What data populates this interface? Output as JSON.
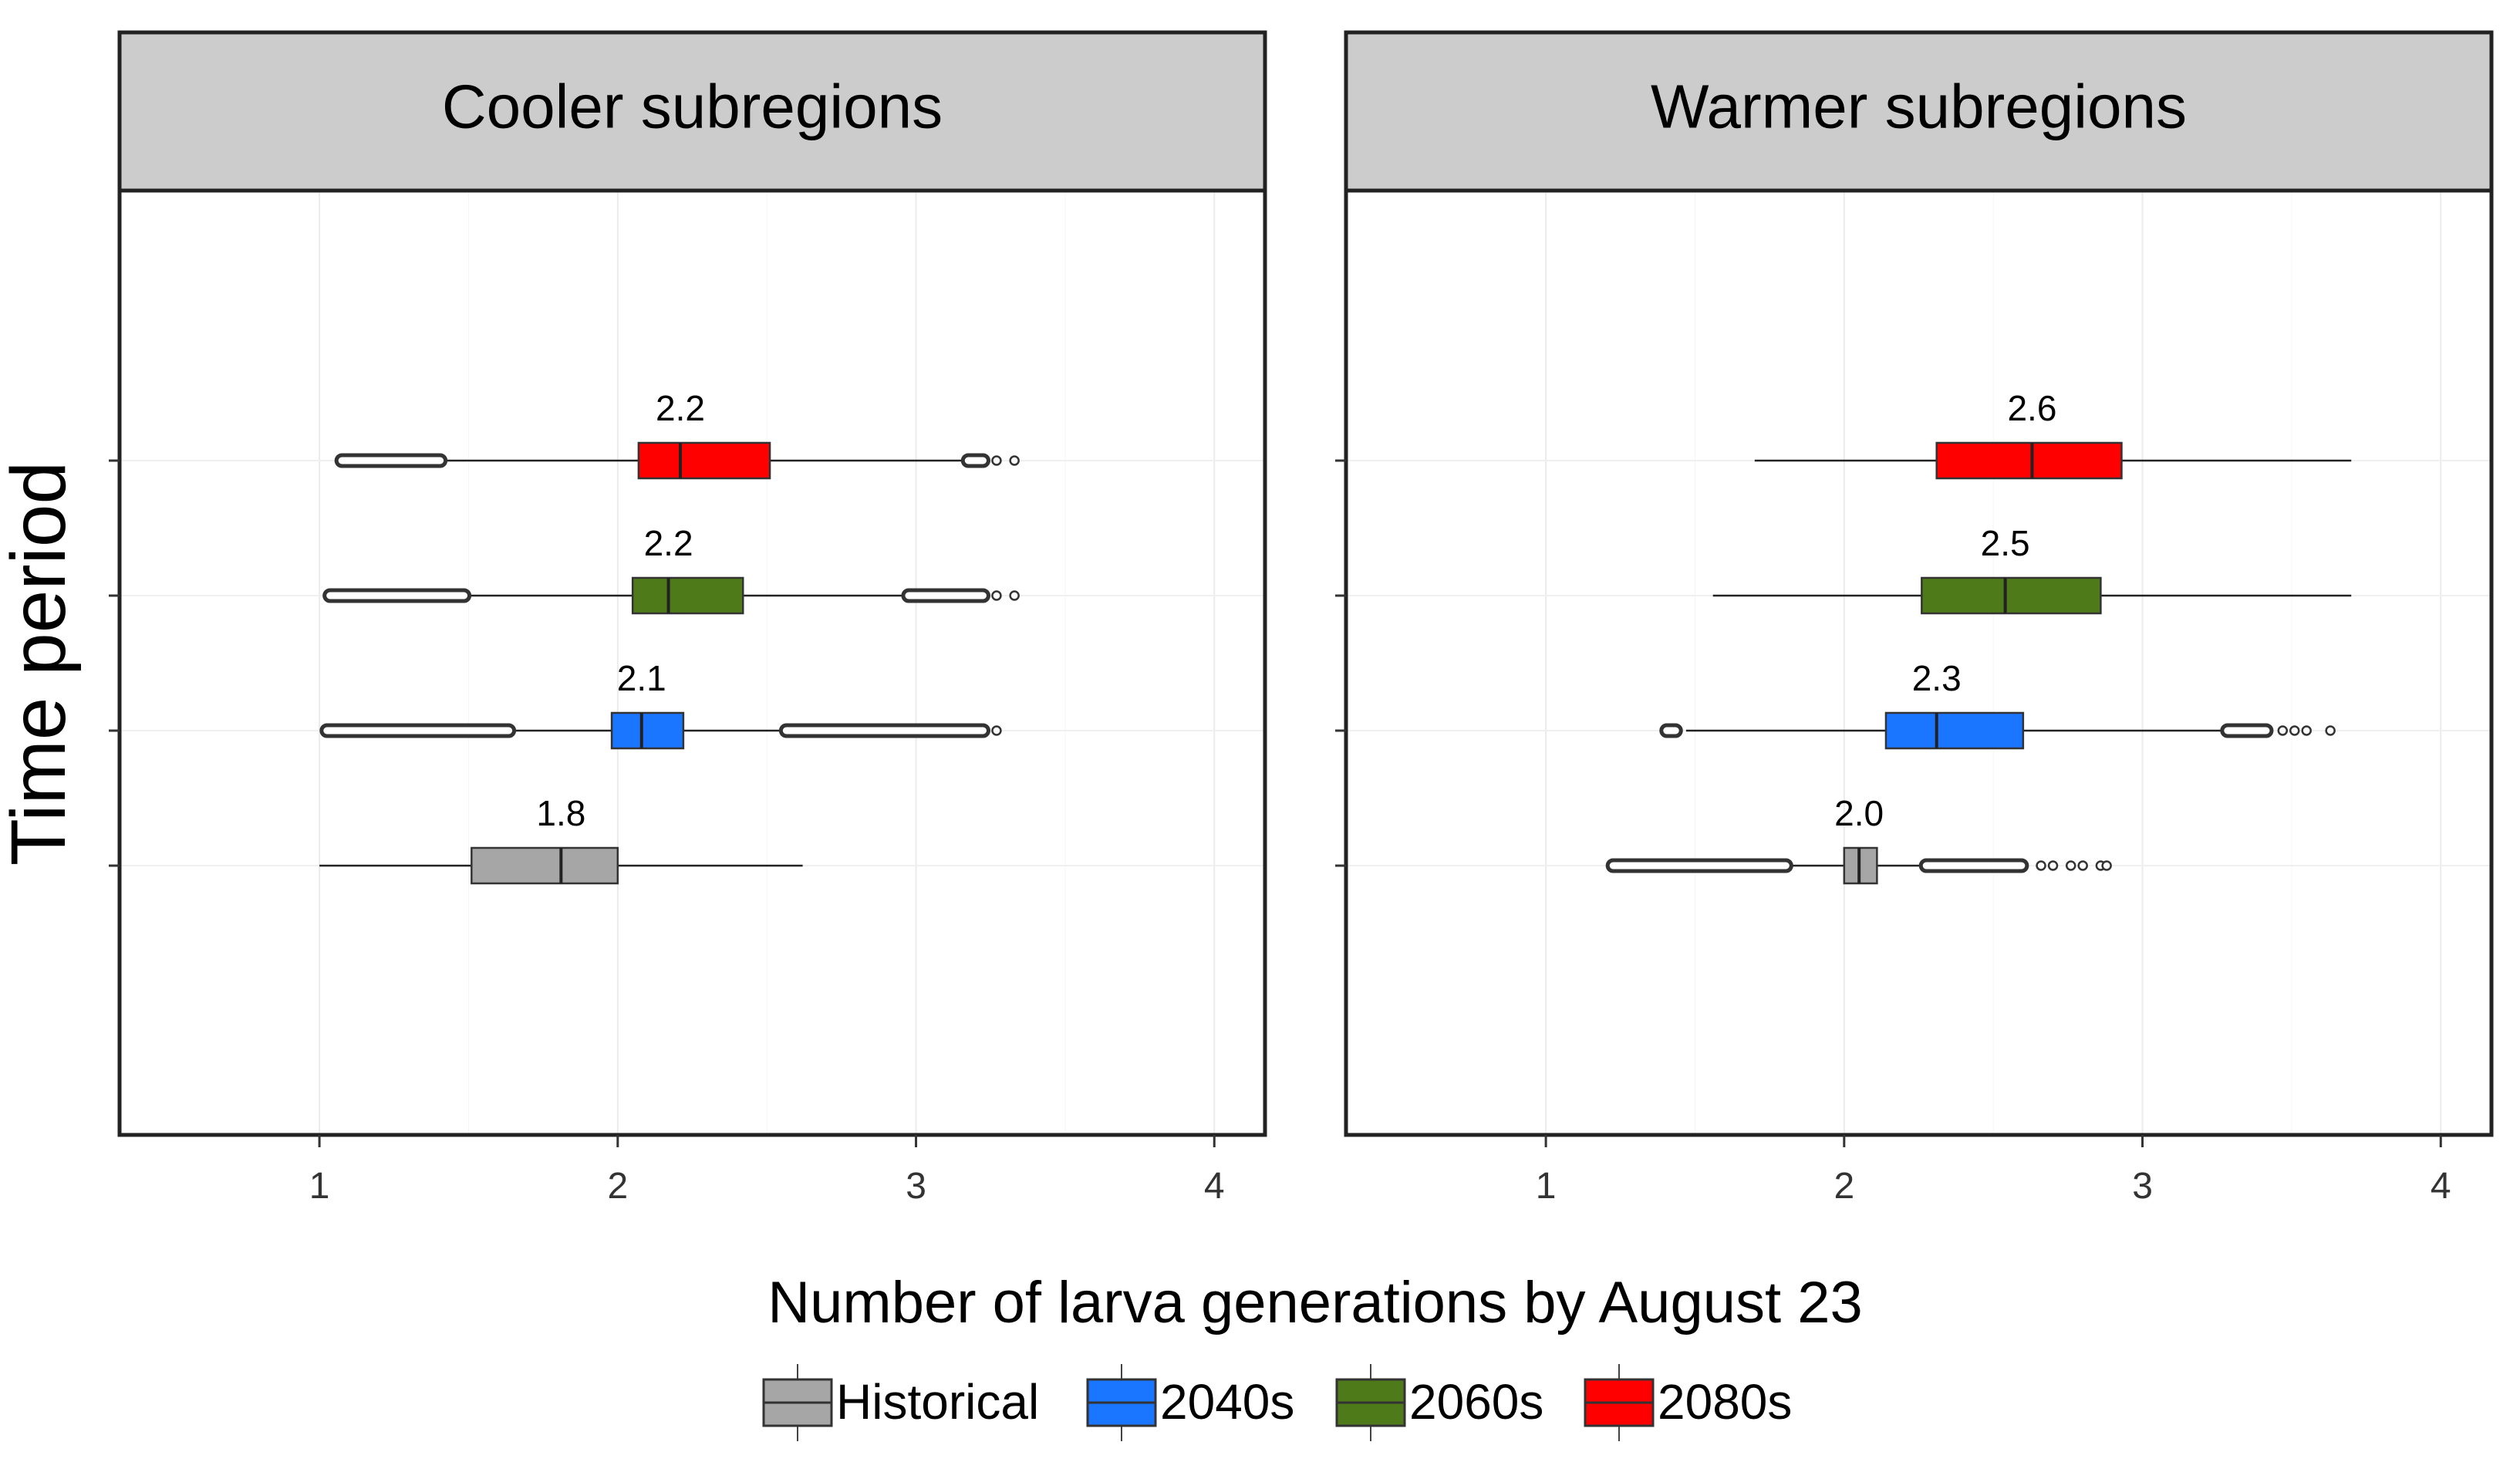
{
  "chart_data": {
    "type": "boxplot",
    "orientation": "horizontal",
    "xlabel": "Number of larva generations by August 23",
    "ylabel": "Time period",
    "xlim": [
      0.33,
      4.17
    ],
    "x_ticks": [
      "1",
      "2",
      "3",
      "4"
    ],
    "grid": true,
    "legend_position": "bottom",
    "legend": [
      {
        "name": "Historical",
        "color": "#a6a6a6"
      },
      {
        "name": "2040s",
        "color": "#1a75ff"
      },
      {
        "name": "2060s",
        "color": "#4f7a1a"
      },
      {
        "name": "2080s",
        "color": "#ff0000"
      }
    ],
    "panels": [
      {
        "title": "Cooler subregions",
        "boxes": [
          {
            "period": "Historical",
            "color": "#a6a6a6",
            "whisker_low": 1.0,
            "q1": 1.51,
            "median": 1.81,
            "q3": 2.0,
            "whisker_high": 2.62,
            "median_label": "1.8",
            "outlier_ranges": []
          },
          {
            "period": "2040s",
            "color": "#1a75ff",
            "whisker_low": 1.64,
            "q1": 1.98,
            "median": 2.08,
            "q3": 2.22,
            "whisker_high": 2.56,
            "median_label": "2.1",
            "outlier_ranges": [
              [
                1.02,
                1.64
              ],
              [
                2.56,
                3.23
              ]
            ],
            "sparse_outliers": [
              3.27
            ]
          },
          {
            "period": "2060s",
            "color": "#4f7a1a",
            "whisker_low": 1.49,
            "q1": 2.05,
            "median": 2.17,
            "q3": 2.42,
            "whisker_high": 2.97,
            "median_label": "2.2",
            "outlier_ranges": [
              [
                1.03,
                1.49
              ],
              [
                2.97,
                3.23
              ]
            ],
            "sparse_outliers": [
              3.27,
              3.33
            ]
          },
          {
            "period": "2080s",
            "color": "#ff0000",
            "whisker_low": 1.41,
            "q1": 2.07,
            "median": 2.21,
            "q3": 2.51,
            "whisker_high": 3.17,
            "median_label": "2.2",
            "outlier_ranges": [
              [
                1.07,
                1.41
              ],
              [
                3.17,
                3.23
              ]
            ],
            "sparse_outliers": [
              3.27,
              3.33
            ]
          }
        ]
      },
      {
        "title": "Warmer subregions",
        "boxes": [
          {
            "period": "Historical",
            "color": "#a6a6a6",
            "whisker_low": 1.81,
            "q1": 2.0,
            "median": 2.05,
            "q3": 2.11,
            "whisker_high": 2.27,
            "median_label": "2.0",
            "outlier_ranges": [
              [
                1.22,
                1.81
              ],
              [
                2.27,
                2.6
              ]
            ],
            "sparse_outliers": [
              2.66,
              2.7,
              2.76,
              2.8,
              2.86,
              2.88
            ]
          },
          {
            "period": "2040s",
            "color": "#1a75ff",
            "whisker_low": 1.47,
            "q1": 2.14,
            "median": 2.31,
            "q3": 2.6,
            "whisker_high": 3.28,
            "median_label": "2.3",
            "outlier_ranges": [
              [
                1.4,
                1.44
              ],
              [
                3.28,
                3.42
              ]
            ],
            "sparse_outliers": [
              3.47,
              3.51,
              3.55,
              3.63
            ]
          },
          {
            "period": "2060s",
            "color": "#4f7a1a",
            "whisker_low": 1.56,
            "q1": 2.26,
            "median": 2.54,
            "q3": 2.86,
            "whisker_high": 3.7,
            "median_label": "2.5",
            "outlier_ranges": [],
            "sparse_outliers": []
          },
          {
            "period": "2080s",
            "color": "#ff0000",
            "whisker_low": 1.7,
            "q1": 2.31,
            "median": 2.63,
            "q3": 2.93,
            "whisker_high": 3.7,
            "median_label": "2.6",
            "outlier_ranges": [],
            "sparse_outliers": []
          }
        ]
      }
    ]
  }
}
